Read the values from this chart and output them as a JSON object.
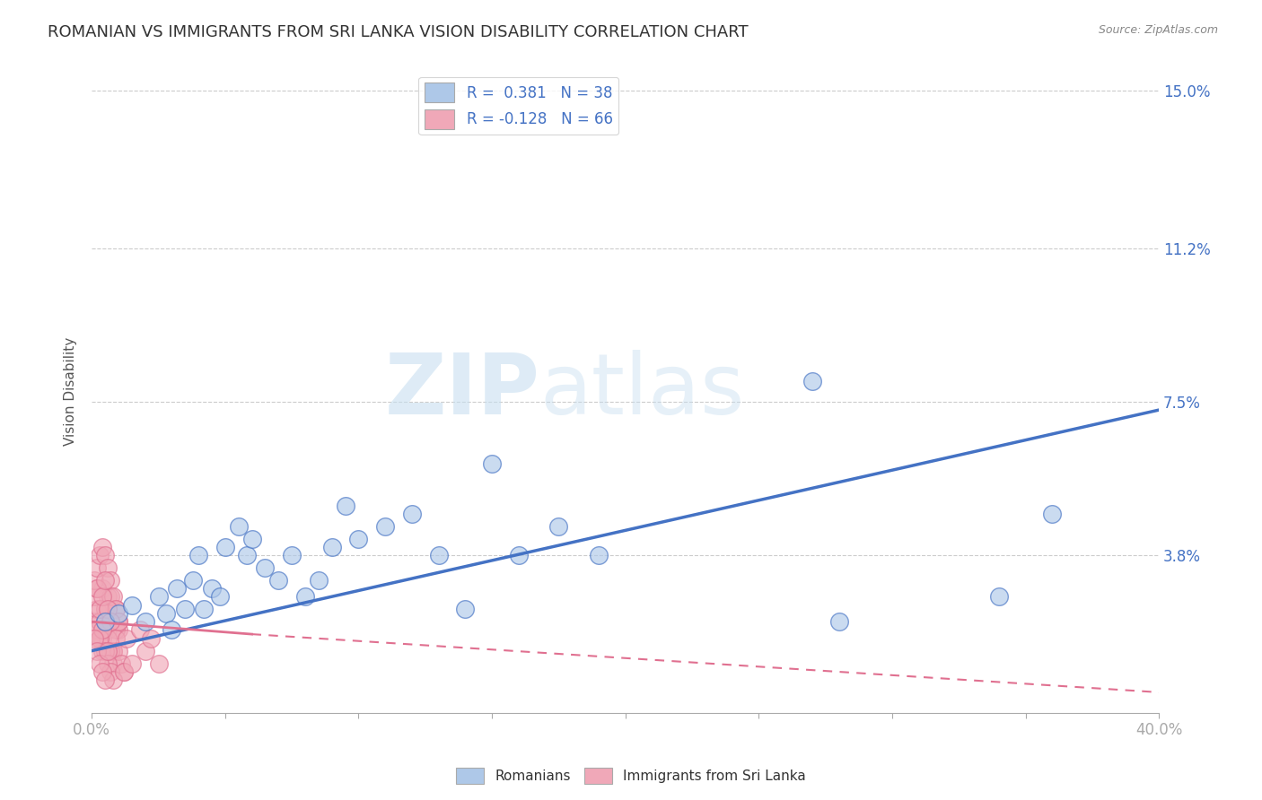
{
  "title": "ROMANIAN VS IMMIGRANTS FROM SRI LANKA VISION DISABILITY CORRELATION CHART",
  "source": "Source: ZipAtlas.com",
  "ylabel": "Vision Disability",
  "xlim": [
    0.0,
    0.4
  ],
  "ylim": [
    0.0,
    0.155
  ],
  "yticks": [
    0.0,
    0.038,
    0.075,
    0.112,
    0.15
  ],
  "ytick_labels": [
    "",
    "3.8%",
    "7.5%",
    "11.2%",
    "15.0%"
  ],
  "xticks": [
    0.0,
    0.05,
    0.1,
    0.15,
    0.2,
    0.25,
    0.3,
    0.35,
    0.4
  ],
  "xtick_labels_show": [
    "0.0%",
    "",
    "",
    "",
    "",
    "",
    "",
    "",
    "40.0%"
  ],
  "blue_R": 0.381,
  "blue_N": 38,
  "pink_R": -0.128,
  "pink_N": 66,
  "blue_color": "#aec8e8",
  "pink_color": "#f0a8b8",
  "blue_line_color": "#4472c4",
  "pink_line_color": "#e07090",
  "title_fontsize": 13,
  "watermark_zip": "ZIP",
  "watermark_atlas": "atlas",
  "blue_line_x": [
    0.0,
    0.4
  ],
  "blue_line_y": [
    0.015,
    0.073
  ],
  "pink_line_x": [
    0.0,
    0.4
  ],
  "pink_line_y": [
    0.022,
    0.005
  ],
  "blue_scatter_x": [
    0.005,
    0.01,
    0.015,
    0.02,
    0.025,
    0.028,
    0.03,
    0.032,
    0.035,
    0.038,
    0.04,
    0.042,
    0.045,
    0.048,
    0.05,
    0.055,
    0.058,
    0.06,
    0.065,
    0.07,
    0.075,
    0.08,
    0.085,
    0.09,
    0.095,
    0.1,
    0.11,
    0.12,
    0.13,
    0.14,
    0.15,
    0.16,
    0.175,
    0.19,
    0.28,
    0.34,
    0.36,
    0.27
  ],
  "blue_scatter_y": [
    0.022,
    0.024,
    0.026,
    0.022,
    0.028,
    0.024,
    0.02,
    0.03,
    0.025,
    0.032,
    0.038,
    0.025,
    0.03,
    0.028,
    0.04,
    0.045,
    0.038,
    0.042,
    0.035,
    0.032,
    0.038,
    0.028,
    0.032,
    0.04,
    0.05,
    0.042,
    0.045,
    0.048,
    0.038,
    0.025,
    0.06,
    0.038,
    0.045,
    0.038,
    0.022,
    0.028,
    0.048,
    0.08
  ],
  "pink_scatter_x": [
    0.001,
    0.002,
    0.003,
    0.004,
    0.005,
    0.006,
    0.007,
    0.008,
    0.009,
    0.01,
    0.001,
    0.002,
    0.003,
    0.004,
    0.005,
    0.006,
    0.007,
    0.008,
    0.009,
    0.01,
    0.001,
    0.002,
    0.003,
    0.004,
    0.005,
    0.006,
    0.007,
    0.008,
    0.009,
    0.01,
    0.002,
    0.003,
    0.004,
    0.005,
    0.006,
    0.007,
    0.008,
    0.009,
    0.01,
    0.011,
    0.012,
    0.013,
    0.002,
    0.003,
    0.004,
    0.005,
    0.006,
    0.007,
    0.003,
    0.004,
    0.005,
    0.006,
    0.007,
    0.008,
    0.001,
    0.002,
    0.003,
    0.004,
    0.005,
    0.006,
    0.02,
    0.025,
    0.018,
    0.022,
    0.012,
    0.015
  ],
  "pink_scatter_y": [
    0.022,
    0.025,
    0.018,
    0.03,
    0.02,
    0.028,
    0.022,
    0.015,
    0.025,
    0.02,
    0.028,
    0.03,
    0.022,
    0.018,
    0.025,
    0.02,
    0.028,
    0.015,
    0.02,
    0.022,
    0.032,
    0.035,
    0.038,
    0.04,
    0.038,
    0.035,
    0.032,
    0.028,
    0.025,
    0.022,
    0.02,
    0.018,
    0.015,
    0.022,
    0.018,
    0.015,
    0.012,
    0.018,
    0.015,
    0.012,
    0.01,
    0.018,
    0.03,
    0.025,
    0.028,
    0.032,
    0.025,
    0.022,
    0.018,
    0.02,
    0.015,
    0.012,
    0.01,
    0.008,
    0.018,
    0.015,
    0.012,
    0.01,
    0.008,
    0.015,
    0.015,
    0.012,
    0.02,
    0.018,
    0.01,
    0.012
  ]
}
